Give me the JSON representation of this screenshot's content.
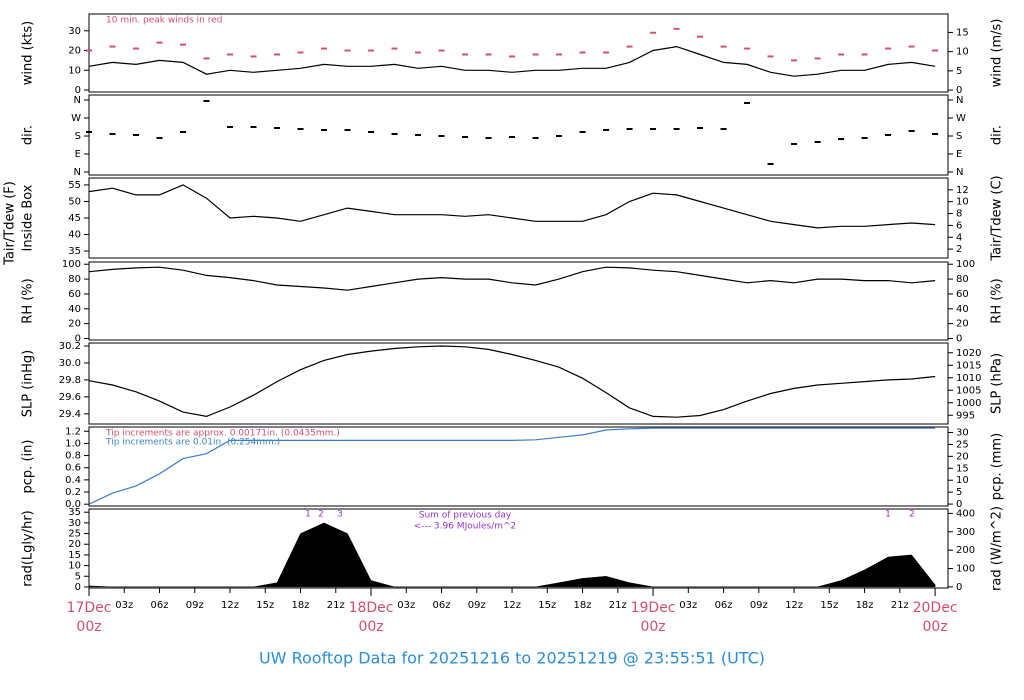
{
  "chart_data": {
    "type": "multi-panel",
    "title": "UW Rooftop Data for 20251216  to  20251219 @ 23:55:51  (UTC)",
    "x": [
      0,
      2,
      4,
      6,
      8,
      10,
      12,
      14,
      16,
      18,
      20,
      22,
      24,
      26,
      28,
      30,
      32,
      34,
      36,
      38,
      40,
      42,
      44,
      46,
      48,
      50,
      52,
      54,
      56,
      58,
      60,
      62,
      64,
      66,
      68,
      70,
      72
    ],
    "xlim": [
      0,
      73.1
    ],
    "xticks": [
      {
        "value": 3,
        "label": "03z"
      },
      {
        "value": 6,
        "label": "06z"
      },
      {
        "value": 9,
        "label": "09z"
      },
      {
        "value": 12,
        "label": "12z"
      },
      {
        "value": 15,
        "label": "15z"
      },
      {
        "value": 18,
        "label": "18z"
      },
      {
        "value": 21,
        "label": "21z"
      },
      {
        "value": 27,
        "label": "03z"
      },
      {
        "value": 30,
        "label": "06z"
      },
      {
        "value": 33,
        "label": "09z"
      },
      {
        "value": 36,
        "label": "12z"
      },
      {
        "value": 39,
        "label": "15z"
      },
      {
        "value": 42,
        "label": "18z"
      },
      {
        "value": 45,
        "label": "21z"
      },
      {
        "value": 51,
        "label": "03z"
      },
      {
        "value": 54,
        "label": "06z"
      },
      {
        "value": 57,
        "label": "09z"
      },
      {
        "value": 60,
        "label": "12z"
      },
      {
        "value": 63,
        "label": "15z"
      },
      {
        "value": 66,
        "label": "18z"
      },
      {
        "value": 69,
        "label": "21z"
      }
    ],
    "date_ticks": [
      {
        "value": 0,
        "date": "17Dec",
        "label": "00z"
      },
      {
        "value": 24,
        "date": "18Dec",
        "label": "00z"
      },
      {
        "value": 48,
        "date": "19Dec",
        "label": "00z"
      },
      {
        "value": 72,
        "date": "20Dec",
        "label": "00z"
      }
    ],
    "panels": [
      {
        "type": "line",
        "ylabel": "wind (kts)",
        "y2label": "wind (m/s)",
        "ylim": [
          -1,
          38.5
        ],
        "yticks": [
          0,
          10,
          20,
          30
        ],
        "y2lim": [
          -0.5,
          19.8
        ],
        "y2ticks": [
          0,
          5,
          10,
          15
        ],
        "annotations": [
          {
            "text": "10 min. peak winds in red",
            "color": "#d4506e"
          }
        ],
        "series": [
          {
            "style": "dash",
            "color": "#d4506e",
            "values": [
              20,
              22,
              21,
              24,
              23,
              16,
              18,
              17,
              18,
              19,
              21,
              20,
              20,
              21,
              19,
              20,
              18,
              18,
              17,
              18,
              18,
              19,
              19,
              22,
              29,
              31,
              27,
              22,
              21,
              17,
              15,
              16,
              18,
              18,
              21,
              22,
              20
            ]
          },
          {
            "style": "line",
            "color": "#000000",
            "values": [
              12,
              14,
              13,
              15,
              14,
              8,
              10,
              9,
              10,
              11,
              13,
              12,
              12,
              13,
              11,
              12,
              10,
              10,
              9,
              10,
              10,
              11,
              11,
              14,
              20,
              22,
              18,
              14,
              13,
              9,
              7,
              8,
              10,
              10,
              13,
              14,
              12
            ]
          }
        ]
      },
      {
        "type": "scatter",
        "ylabel": "dir.",
        "y2label": "dir.",
        "ylim": [
          -15,
          385
        ],
        "yticks": [
          {
            "value": 0,
            "label": "N"
          },
          {
            "value": 90,
            "label": "E"
          },
          {
            "value": 180,
            "label": "S"
          },
          {
            "value": 270,
            "label": "W"
          },
          {
            "value": 360,
            "label": "N"
          }
        ],
        "y2lim": [
          -15,
          385
        ],
        "y2ticks": [
          {
            "value": 0,
            "label": "N"
          },
          {
            "value": 90,
            "label": "E"
          },
          {
            "value": 180,
            "label": "S"
          },
          {
            "value": 270,
            "label": "W"
          },
          {
            "value": 360,
            "label": "N"
          }
        ],
        "series": [
          {
            "style": "dash",
            "color": "#000000",
            "values": [
              200,
              190,
              185,
              170,
              200,
              355,
              225,
              225,
              220,
              215,
              210,
              210,
              200,
              190,
              185,
              180,
              175,
              170,
              175,
              170,
              180,
              200,
              210,
              215,
              215,
              215,
              220,
              215,
              345,
              40,
              140,
              150,
              165,
              170,
              185,
              205,
              190
            ]
          }
        ]
      },
      {
        "type": "line",
        "ylabel": "Tair/Tdew (F)",
        "sublabel": "Inside Box",
        "y2label": "Tair/Tdew (C)",
        "ylim": [
          32.9,
          57.1
        ],
        "yticks": [
          35,
          40,
          45,
          50,
          55
        ],
        "y2lim": [
          0.5,
          14
        ],
        "y2ticks": [
          2,
          4,
          6,
          8,
          10,
          12
        ],
        "series": [
          {
            "style": "line",
            "color": "#000000",
            "values": [
              53,
              54,
              52,
              52,
              55,
              51,
              45,
              45.5,
              45,
              44,
              46,
              48,
              47,
              46,
              46,
              46,
              45.5,
              46,
              45,
              44,
              44,
              44,
              46,
              50,
              52.5,
              52,
              50,
              48,
              46,
              44,
              43,
              42,
              42.5,
              42.5,
              43,
              43.5,
              43
            ]
          }
        ]
      },
      {
        "type": "line",
        "ylabel": "RH (%)",
        "y2label": "RH (%)",
        "ylim": [
          -2,
          103
        ],
        "yticks": [
          0,
          20,
          40,
          60,
          80,
          100
        ],
        "y2lim": [
          -2,
          103
        ],
        "y2ticks": [
          0,
          20,
          40,
          60,
          80,
          100
        ],
        "series": [
          {
            "style": "line",
            "color": "#000000",
            "values": [
              90,
              93,
              95,
              96,
              92,
              85,
              82,
              78,
              72,
              70,
              68,
              65,
              70,
              75,
              80,
              82,
              80,
              80,
              75,
              72,
              80,
              90,
              96,
              95,
              92,
              90,
              85,
              80,
              75,
              78,
              75,
              80,
              80,
              78,
              78,
              75,
              78
            ]
          }
        ]
      },
      {
        "type": "line",
        "ylabel": "SLP (inHg)",
        "y2label": "SLP (hPa)",
        "ylim": [
          29.28,
          30.235
        ],
        "yticks": [
          {
            "value": 29.4,
            "label": "29.4"
          },
          {
            "value": 29.6,
            "label": "29.6"
          },
          {
            "value": 29.8,
            "label": "29.8"
          },
          {
            "value": 30,
            "label": "30.0"
          },
          {
            "value": 30.2,
            "label": "30.2"
          }
        ],
        "y2lim": [
          991.5,
          1023.9
        ],
        "y2ticks": [
          995,
          1000,
          1005,
          1010,
          1015,
          1020
        ],
        "series": [
          {
            "style": "line",
            "color": "#000000",
            "values": [
              29.79,
              29.74,
              29.66,
              29.55,
              29.42,
              29.37,
              29.48,
              29.62,
              29.78,
              29.92,
              30.03,
              30.1,
              30.14,
              30.17,
              30.19,
              30.2,
              30.19,
              30.16,
              30.1,
              30.03,
              29.95,
              29.82,
              29.65,
              29.47,
              29.37,
              29.36,
              29.38,
              29.45,
              29.55,
              29.64,
              29.7,
              29.74,
              29.76,
              29.78,
              29.8,
              29.81,
              29.84
            ]
          }
        ]
      },
      {
        "type": "line",
        "ylabel": "pcp. (in)",
        "y2label": "pcp. (mm)",
        "ylim": [
          -0.03,
          1.27
        ],
        "yticks": [
          {
            "value": 0,
            "label": "0.0"
          },
          0.2,
          0.4,
          0.6,
          0.8,
          {
            "value": 1,
            "label": "1.0"
          },
          1.2
        ],
        "y2lim": [
          -0.8,
          32.3
        ],
        "y2ticks": [
          0,
          5,
          10,
          15,
          20,
          25,
          30
        ],
        "annotations": [
          {
            "text": "Tip increments are approx. 0.00171in. (0.0435mm.)",
            "color": "#d4506e"
          },
          {
            "text": "Tip increments are 0.01in. (0.254mm.)",
            "color": "#3a84cc"
          }
        ],
        "series": [
          {
            "style": "line",
            "color": "#3a7fc8",
            "values": [
              0,
              0.18,
              0.3,
              0.5,
              0.75,
              0.83,
              1.05,
              1.05,
              1.05,
              1.05,
              1.05,
              1.05,
              1.05,
              1.05,
              1.05,
              1.05,
              1.05,
              1.05,
              1.05,
              1.06,
              1.1,
              1.14,
              1.22,
              1.24,
              1.25,
              1.25,
              1.25,
              1.25,
              1.25,
              1.25,
              1.25,
              1.25,
              1.25,
              1.25,
              1.25,
              1.25,
              1.25
            ]
          }
        ]
      },
      {
        "type": "area",
        "ylabel": "rad(Lgly/hr)",
        "y2label": "rad (W/m^2)",
        "ylim": [
          -0.5,
          36.5
        ],
        "yticks": [
          0,
          5,
          10,
          15,
          20,
          25,
          30,
          35
        ],
        "y2lim": [
          -6,
          424
        ],
        "y2ticks": [
          0,
          100,
          200,
          300,
          400
        ],
        "annotations": [
          {
            "text": "1",
            "color": "#9933cc"
          },
          {
            "text": "2",
            "color": "#9933cc"
          },
          {
            "text": "3",
            "color": "#9933cc"
          },
          {
            "text": "Sum of previous day",
            "color": "#9933cc"
          },
          {
            "text": "<--- 3.96 MJoules/m^2",
            "color": "#9933cc"
          },
          {
            "text": "1",
            "color": "#9933cc"
          },
          {
            "text": "2",
            "color": "#9933cc"
          }
        ],
        "series": [
          {
            "style": "area",
            "color": "#000000",
            "values": [
              0.5,
              0,
              0,
              0,
              0,
              0,
              0,
              0,
              2,
              25,
              30,
              25,
              3,
              0,
              0,
              0,
              0,
              0,
              0,
              0,
              2,
              4,
              5,
              2,
              0,
              0,
              0,
              0,
              0,
              0,
              0,
              0,
              3,
              8,
              14,
              15,
              1
            ]
          }
        ]
      }
    ]
  }
}
